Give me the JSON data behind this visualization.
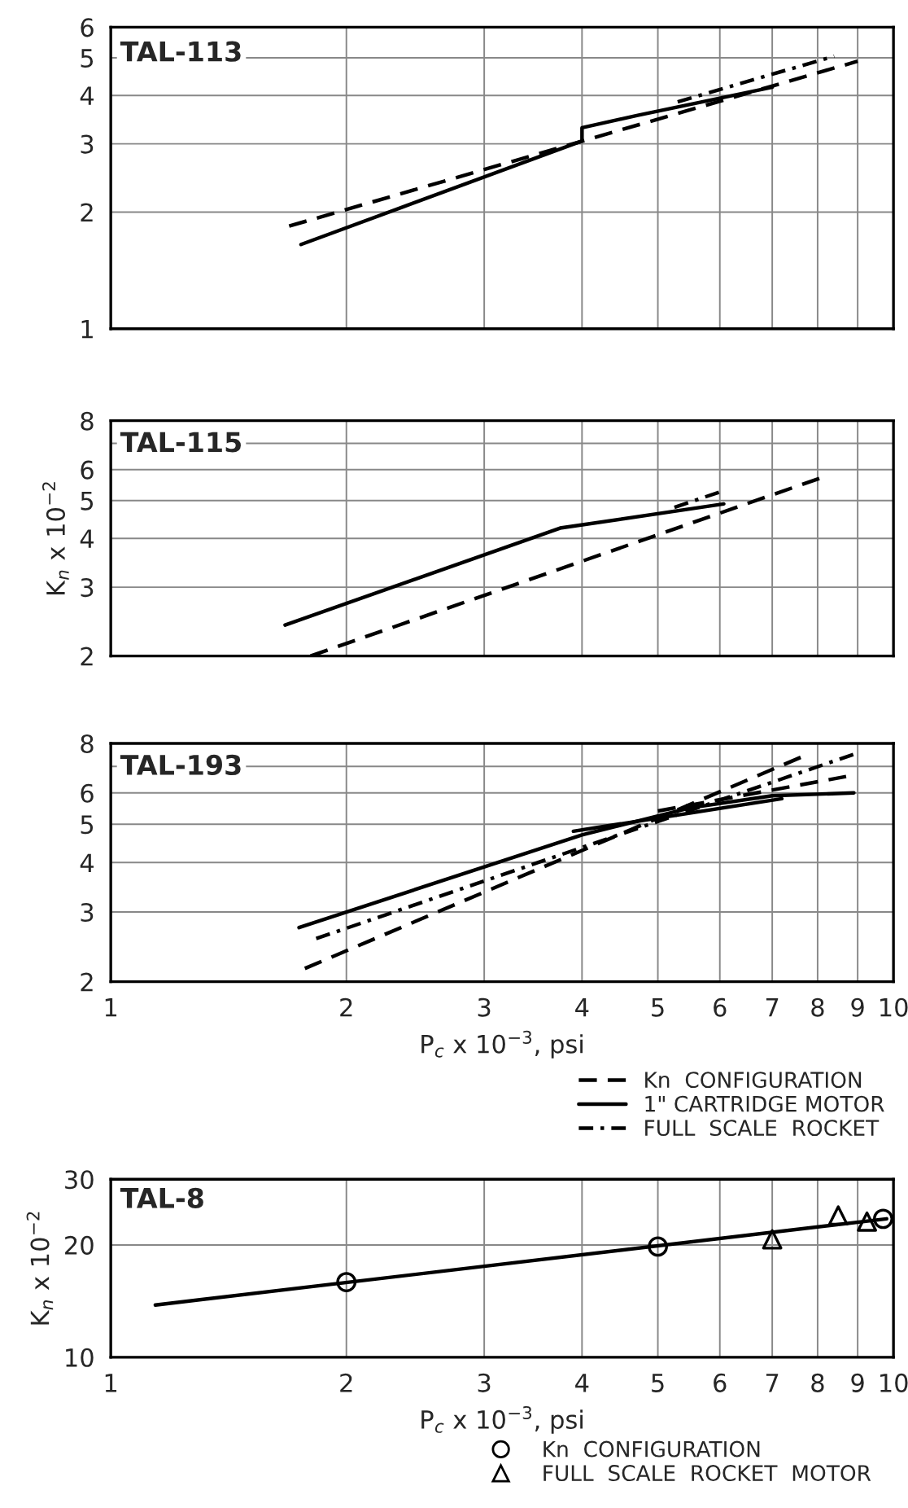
{
  "chart_data": [
    {
      "type": "line",
      "title": "TAL-113",
      "log": "xy",
      "xlim": [
        1,
        10
      ],
      "xticks": [
        1,
        2,
        3,
        4,
        5,
        6,
        7,
        8,
        9,
        10
      ],
      "ylim": [
        1,
        6
      ],
      "yticks": [
        1,
        2,
        3,
        4,
        5,
        6
      ],
      "tick_labels": "y",
      "grid": true,
      "series": [
        {
          "color": "#000000",
          "line_style": "dashed",
          "x": [
            1.69,
            9.0
          ],
          "values": [
            1.84,
            4.9
          ]
        },
        {
          "color": "#000000",
          "line_style": "solid",
          "x": [
            1.75,
            4.0,
            4.0,
            4.7,
            7.0
          ],
          "values": [
            1.65,
            3.05,
            3.3,
            3.55,
            4.2
          ]
        },
        {
          "color": "#000000",
          "line_style": "dashdot",
          "x": [
            5.3,
            8.4
          ],
          "values": [
            3.85,
            5.05
          ]
        }
      ]
    },
    {
      "type": "line",
      "title": "TAL-115",
      "ylabel": "K$_{n}$ x 10$^{−2}$",
      "log": "xy",
      "xlim": [
        1,
        10
      ],
      "xticks": [
        1,
        2,
        3,
        4,
        5,
        6,
        7,
        8,
        9,
        10
      ],
      "ylim": [
        2,
        8
      ],
      "yticks": [
        2,
        3,
        4,
        5,
        6,
        {
          "value": 7,
          "label": null
        },
        8
      ],
      "tick_labels": "y",
      "grid": true,
      "series": [
        {
          "color": "#000000",
          "line_style": "dashed",
          "x": [
            1.8,
            8.05
          ],
          "values": [
            2.0,
            5.7
          ]
        },
        {
          "color": "#000000",
          "line_style": "solid",
          "x": [
            1.67,
            3.75,
            6.07
          ],
          "values": [
            2.4,
            4.25,
            4.9
          ]
        },
        {
          "color": "#000000",
          "line_style": "dashdot",
          "x": [
            5.25,
            6.07
          ],
          "values": [
            4.8,
            5.3
          ]
        }
      ]
    },
    {
      "type": "line",
      "title": "TAL-193",
      "xlabel": "P$_{c}$ x 10$^{−3}$, psi",
      "log": "xy",
      "xlim": [
        1,
        10
      ],
      "xticks": [
        1,
        2,
        3,
        4,
        5,
        6,
        7,
        8,
        9,
        10
      ],
      "ylim": [
        2,
        8
      ],
      "yticks": [
        2,
        3,
        4,
        5,
        6,
        {
          "value": 7,
          "label": null
        },
        8
      ],
      "grid": true,
      "legend": "bottom right",
      "series": [
        {
          "name": "Kn  CONFIGURATION",
          "color": "#000000",
          "line_style": "dashed",
          "x": [
            1.77,
            7.7
          ],
          "values": [
            2.16,
            7.45
          ]
        },
        {
          "name": "1\" CARTRIDGE MOTOR",
          "color": "#000000",
          "line_style": "solid",
          "x": [
            1.74,
            4.0,
            5.5,
            7.0,
            8.9
          ],
          "values": [
            2.74,
            4.7,
            5.5,
            5.9,
            6.0
          ]
        },
        {
          "name": "FULL  SCALE  ROCKET",
          "color": "#000000",
          "line_style": "dashdot",
          "x": [
            1.83,
            9.0
          ],
          "values": [
            2.57,
            7.57
          ]
        },
        {
          "color": "#000000",
          "line_style": "dashed",
          "x": [
            5.0,
            8.7
          ],
          "values": [
            5.4,
            6.6
          ]
        },
        {
          "color": "#000000",
          "line_style": "solid",
          "x": [
            3.9,
            7.2
          ],
          "values": [
            4.8,
            5.8
          ]
        }
      ]
    },
    {
      "type": "line",
      "title": "TAL-8",
      "xlabel": "P$_{c}$ x 10$^{−3}$, psi",
      "ylabel": "K$_{n}$ x 10$^{−2}$",
      "log": "xy",
      "xlim": [
        1,
        10
      ],
      "xticks": [
        1,
        2,
        3,
        4,
        5,
        6,
        7,
        8,
        9,
        10
      ],
      "ylim": [
        10,
        30
      ],
      "yticks": [
        10,
        20,
        30
      ],
      "grid": true,
      "legend": "bottom",
      "series": [
        {
          "color": "#000000",
          "line_style": "solid",
          "x": [
            1.14,
            9.8
          ],
          "values": [
            13.8,
            23.5
          ]
        },
        {
          "type": "scatter",
          "name": "Kn  CONFIGURATION",
          "color": "#000000",
          "marker": "circle",
          "x": [
            2,
            5,
            9.7
          ],
          "values": [
            15.9,
            19.8,
            23.5
          ]
        },
        {
          "type": "scatter",
          "name": "FULL  SCALE  ROCKET  MOTOR",
          "color": "#000000",
          "marker": "triangle",
          "x": [
            7,
            8.5,
            9.25
          ],
          "values": [
            20.7,
            24.0,
            23.1
          ]
        }
      ]
    }
  ]
}
